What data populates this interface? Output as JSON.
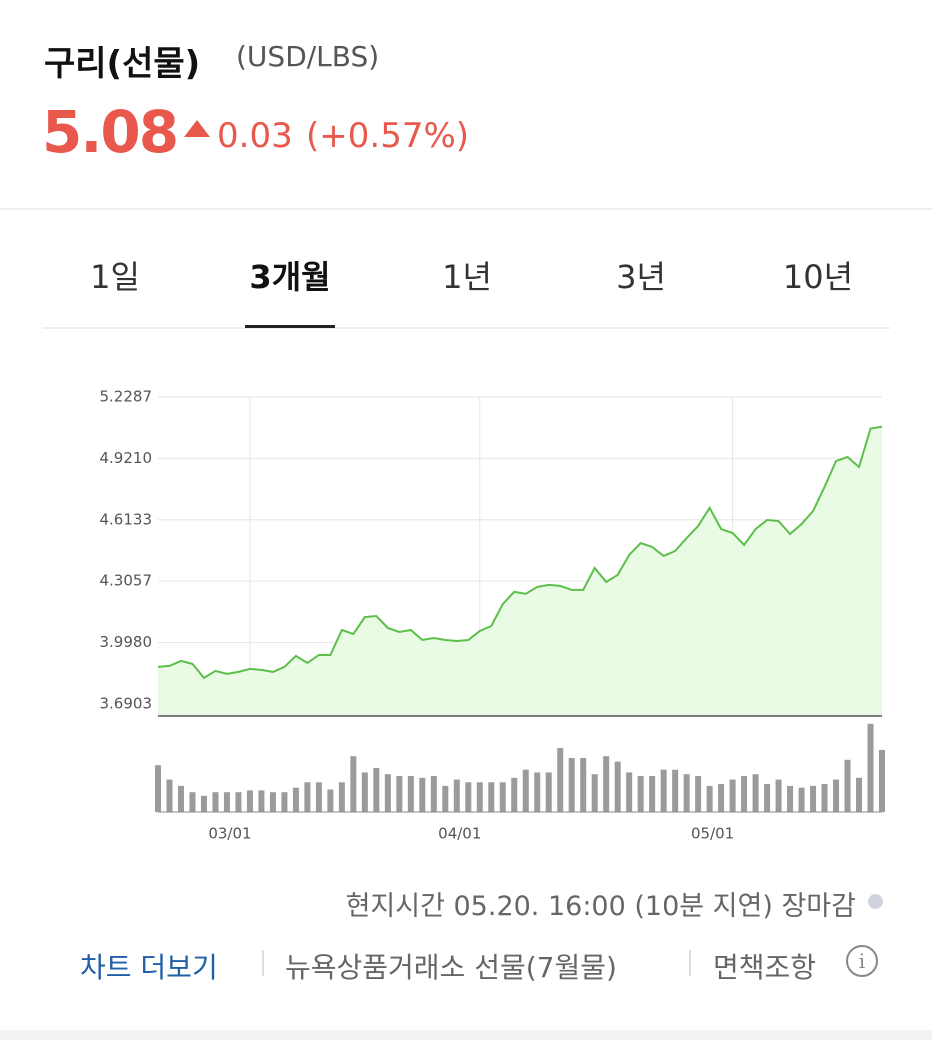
{
  "header": {
    "title": "구리(선물)",
    "unit": "(USD/LBS)",
    "price": "5.08",
    "change": "0.03",
    "change_percent": "(+0.57%)"
  },
  "tabs": {
    "items": [
      "1일",
      "3개월",
      "1년",
      "3년",
      "10년"
    ],
    "active": 1
  },
  "chart_data": {
    "type": "line",
    "color": "#5cbf4a",
    "volume_color": "#9b9b9b",
    "grid": true,
    "categories": [
      null,
      null,
      null,
      null,
      null,
      null,
      null,
      null,
      "03/01",
      null,
      null,
      null,
      null,
      null,
      null,
      null,
      null,
      null,
      null,
      null,
      null,
      null,
      null,
      null,
      null,
      null,
      null,
      null,
      "04/01",
      null,
      null,
      null,
      null,
      null,
      null,
      null,
      null,
      null,
      null,
      null,
      null,
      null,
      null,
      null,
      null,
      null,
      null,
      null,
      null,
      null,
      "05/01",
      null,
      null,
      null,
      null,
      null,
      null,
      null,
      null,
      null,
      null,
      null,
      null,
      null
    ],
    "values": [
      3.876,
      3.881,
      3.906,
      3.891,
      3.821,
      3.856,
      3.841,
      3.851,
      3.866,
      3.861,
      3.851,
      3.876,
      3.931,
      3.896,
      3.936,
      3.936,
      4.061,
      4.041,
      4.126,
      4.131,
      4.071,
      4.051,
      4.061,
      4.011,
      4.021,
      4.011,
      4.006,
      4.011,
      4.056,
      4.081,
      4.191,
      4.252,
      4.242,
      4.277,
      4.287,
      4.282,
      4.262,
      4.262,
      4.372,
      4.302,
      4.337,
      4.437,
      4.497,
      4.477,
      4.432,
      4.457,
      4.522,
      4.582,
      4.673,
      4.567,
      4.547,
      4.487,
      4.567,
      4.612,
      4.607,
      4.542,
      4.592,
      4.657,
      4.778,
      4.908,
      4.928,
      4.878,
      5.07,
      5.08
    ],
    "volume": [
      52,
      36,
      29,
      22,
      18,
      22,
      22,
      22,
      24,
      24,
      22,
      22,
      27,
      33,
      33,
      25,
      33,
      62,
      44,
      49,
      42,
      40,
      40,
      38,
      40,
      29,
      36,
      33,
      33,
      33,
      33,
      38,
      47,
      44,
      44,
      71,
      60,
      60,
      42,
      62,
      56,
      44,
      40,
      40,
      47,
      47,
      42,
      40,
      29,
      31,
      36,
      40,
      42,
      31,
      36,
      29,
      27,
      29,
      31,
      36,
      58,
      38,
      98,
      69
    ],
    "volume_ylim": [
      0,
      100
    ],
    "ylim": [
      3.63,
      5.2287
    ],
    "yticks": [
      5.2287,
      {
        "value": 4.921,
        "label": "4.9210"
      },
      4.6133,
      4.3057,
      {
        "value": 3.998,
        "label": "3.9980"
      },
      3.6903
    ]
  },
  "footer": {
    "status": "현지시간 05.20. 16:00 (10분 지연) 장마감",
    "more": "차트 더보기",
    "exchange": "뉴욕상품거래소 선물(7월물)",
    "disclaimer": "면책조항"
  }
}
